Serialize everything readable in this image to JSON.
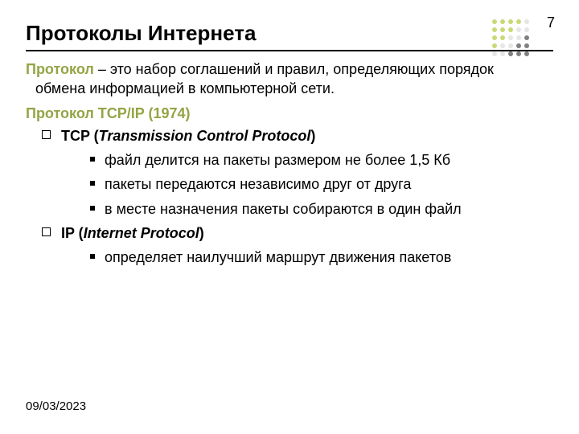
{
  "page_number": "7",
  "title": "Протоколы Интернета",
  "definition_term": "Протокол",
  "definition_rest": " – это набор соглашений и правил, определяющих порядок обмена информацией в компьютерной сети.",
  "subheading": "Протокол TCP/IP (1974)",
  "tcp_prefix": "TCP (",
  "tcp_italic": "Transmission Control Protocol",
  "tcp_suffix": ")",
  "tcp_items": [
    "файл делится на пакеты размером не более 1,5 Кб",
    "пакеты передаются независимо друг от друга",
    "в месте назначения пакеты собираются в один файл"
  ],
  "ip_prefix": "IP (",
  "ip_italic": "Internet Protocol",
  "ip_suffix": ")",
  "ip_items": [
    "определяет наилучший маршрут движения пакетов"
  ],
  "footer_date": "09/03/2023",
  "dot_grid": {
    "rows": 5,
    "cols": 5,
    "colors": [
      [
        "#c9d978",
        "#c9d978",
        "#c9d978",
        "#c9d978",
        "#e6e6e6"
      ],
      [
        "#c9d978",
        "#c9d978",
        "#c9d978",
        "#e6e6e6",
        "#e6e6e6"
      ],
      [
        "#c9d978",
        "#c9d978",
        "#e6e6e6",
        "#e6e6e6",
        "#808080"
      ],
      [
        "#c9d978",
        "#e6e6e6",
        "#e6e6e6",
        "#808080",
        "#808080"
      ],
      [
        "#e6e6e6",
        "#e6e6e6",
        "#808080",
        "#808080",
        "#808080"
      ]
    ]
  },
  "colors": {
    "accent": "#93a545",
    "text": "#000000",
    "background": "#ffffff"
  }
}
